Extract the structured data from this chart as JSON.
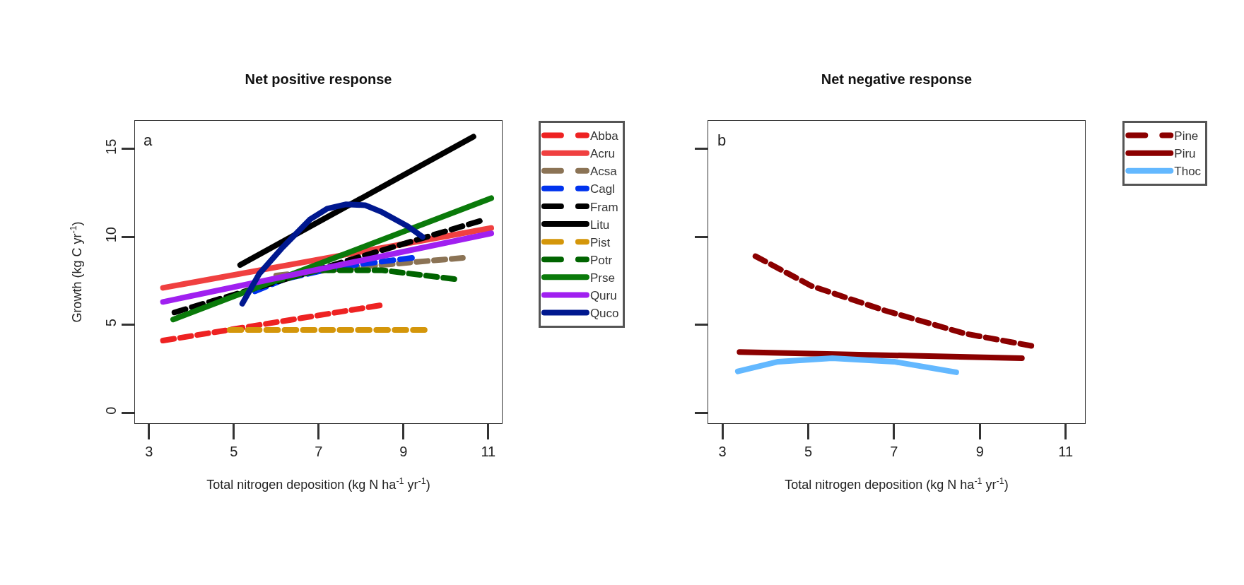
{
  "chart_data": [
    {
      "type": "line",
      "title": "Net positive response",
      "xlabel": "Total nitrogen deposition (kg N ha$^{-1}$ yr$^{-1}$)",
      "ylabel": "Growth (kg C yr$^{-1}$)",
      "xlim": [
        2.67,
        11.32
      ],
      "ylim": [
        -0.6,
        16.6
      ],
      "xticks": [
        3,
        5,
        7,
        9,
        11
      ],
      "yticks": [
        0,
        5,
        10,
        15
      ],
      "grid": false,
      "legend": "right",
      "annotations": [
        "a"
      ],
      "series": [
        {
          "name": "Abba",
          "color": "#ee2222",
          "line_style": "dashed",
          "x": [
            3.33,
            8.44
          ],
          "values": [
            4.1,
            6.1
          ]
        },
        {
          "name": "Acru",
          "color": "#f04040",
          "line_style": "solid",
          "x": [
            3.33,
            11.07
          ],
          "values": [
            7.1,
            10.5
          ]
        },
        {
          "name": "Acsa",
          "color": "#8b7355",
          "line_style": "dashed",
          "x": [
            6.0,
            8.0,
            10.4
          ],
          "values": [
            7.8,
            8.3,
            8.8
          ]
        },
        {
          "name": "Cagl",
          "color": "#0033ee",
          "line_style": "dashed",
          "x": [
            5.5,
            6.2,
            7.5,
            9.2
          ],
          "values": [
            6.9,
            7.6,
            8.3,
            8.8
          ]
        },
        {
          "name": "Fram",
          "color": "#000000",
          "line_style": "dashed",
          "x": [
            3.6,
            10.8
          ],
          "values": [
            5.7,
            10.9
          ]
        },
        {
          "name": "Litu",
          "color": "#000000",
          "line_style": "solid",
          "x": [
            5.15,
            10.65
          ],
          "values": [
            8.4,
            15.7
          ]
        },
        {
          "name": "Pist",
          "color": "#d4960a",
          "line_style": "dashed",
          "x": [
            4.9,
            9.5
          ],
          "values": [
            4.7,
            4.7
          ]
        },
        {
          "name": "Potr",
          "color": "#006400",
          "line_style": "dashed",
          "x": [
            5.5,
            7.0,
            8.5,
            10.2
          ],
          "values": [
            7.2,
            8.1,
            8.1,
            7.6
          ]
        },
        {
          "name": "Prse",
          "color": "#0a7a0a",
          "line_style": "solid",
          "x": [
            3.57,
            11.07
          ],
          "values": [
            5.3,
            12.2
          ]
        },
        {
          "name": "Quru",
          "color": "#a020f0",
          "line_style": "solid",
          "x": [
            3.33,
            11.07
          ],
          "values": [
            6.3,
            10.2
          ]
        },
        {
          "name": "Quco",
          "color": "#00188f",
          "line_style": "solid",
          "x": [
            5.2,
            5.6,
            6.15,
            6.8,
            7.2,
            7.65,
            8.1,
            8.5,
            9.1,
            9.45
          ],
          "values": [
            6.2,
            7.9,
            9.4,
            11.0,
            11.6,
            11.85,
            11.8,
            11.4,
            10.6,
            10.0
          ]
        }
      ]
    },
    {
      "type": "line",
      "title": "Net negative response",
      "xlabel": "Total nitrogen deposition (kg N ha$^{-1}$ yr$^{-1}$)",
      "xlim": [
        2.67,
        11.45
      ],
      "ylim": [
        -0.6,
        16.6
      ],
      "xticks": [
        3,
        5,
        7,
        9,
        11
      ],
      "yticks": [
        0,
        5,
        10,
        15
      ],
      "tick_labels": "x",
      "grid": false,
      "legend": "right",
      "annotations": [
        "b"
      ],
      "series": [
        {
          "name": "Pine",
          "color": "#8b0000",
          "line_style": "dashed",
          "x": [
            3.77,
            5.08,
            6.8,
            8.65,
            10.2
          ],
          "values": [
            8.9,
            7.2,
            5.8,
            4.5,
            3.8
          ]
        },
        {
          "name": "Piru",
          "color": "#8b0000",
          "line_style": "solid",
          "x": [
            3.4,
            9.98
          ],
          "values": [
            3.45,
            3.1
          ]
        },
        {
          "name": "Thoc",
          "color": "#63b8ff",
          "line_style": "solid",
          "x": [
            3.36,
            4.3,
            5.56,
            7.0,
            8.45
          ],
          "values": [
            2.35,
            2.9,
            3.1,
            2.9,
            2.3
          ]
        }
      ]
    }
  ]
}
